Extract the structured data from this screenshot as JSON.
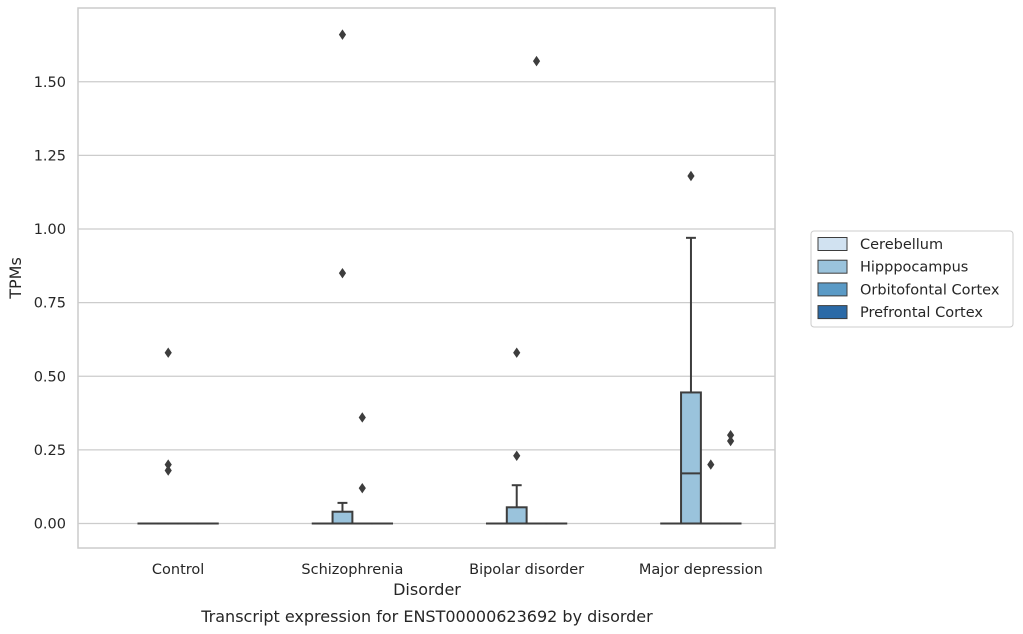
{
  "chart_data": {
    "type": "box",
    "caption": "Transcript expression for ENST00000623692 by disorder",
    "xlabel": "Disorder",
    "ylabel": "TPMs",
    "ylim": [
      -0.08,
      1.75
    ],
    "yticks": [
      0.0,
      0.25,
      0.5,
      0.75,
      1.0,
      1.25,
      1.5
    ],
    "ytick_labels": [
      "0.00",
      "0.25",
      "0.50",
      "0.75",
      "1.00",
      "1.25",
      "1.50"
    ],
    "grid": true,
    "legend_position": "right",
    "categories": [
      "Control",
      "Schizophrenia",
      "Bipolar disorder",
      "Major depression"
    ],
    "series": [
      {
        "name": "Cerebellum",
        "color": "#d1e2f1",
        "boxes": [
          {
            "q1": 0,
            "median": 0,
            "q3": 0,
            "whisker_low": 0,
            "whisker_high": 0,
            "outliers": []
          },
          {
            "q1": 0,
            "median": 0,
            "q3": 0,
            "whisker_low": 0,
            "whisker_high": 0,
            "outliers": []
          },
          {
            "q1": 0,
            "median": 0,
            "q3": 0,
            "whisker_low": 0,
            "whisker_high": 0,
            "outliers": []
          },
          {
            "q1": 0,
            "median": 0,
            "q3": 0,
            "whisker_low": 0,
            "whisker_high": 0,
            "outliers": []
          }
        ]
      },
      {
        "name": "Hipppocampus",
        "color": "#9ac3dc",
        "boxes": [
          {
            "q1": 0,
            "median": 0,
            "q3": 0,
            "whisker_low": 0,
            "whisker_high": 0,
            "outliers": [
              0.58,
              0.2,
              0.18
            ]
          },
          {
            "q1": 0,
            "median": 0,
            "q3": 0.04,
            "whisker_low": 0,
            "whisker_high": 0.07,
            "outliers": [
              1.66,
              0.85
            ]
          },
          {
            "q1": 0,
            "median": 0,
            "q3": 0.055,
            "whisker_low": 0,
            "whisker_high": 0.13,
            "outliers": [
              0.58,
              0.23
            ]
          },
          {
            "q1": 0,
            "median": 0.17,
            "q3": 0.445,
            "whisker_low": 0,
            "whisker_high": 0.97,
            "outliers": [
              1.18
            ]
          }
        ]
      },
      {
        "name": "Orbitofontal Cortex",
        "color": "#5a9ac6",
        "boxes": [
          {
            "q1": 0,
            "median": 0,
            "q3": 0,
            "whisker_low": 0,
            "whisker_high": 0,
            "outliers": []
          },
          {
            "q1": 0,
            "median": 0,
            "q3": 0,
            "whisker_low": 0,
            "whisker_high": 0,
            "outliers": [
              0.36,
              0.12
            ]
          },
          {
            "q1": 0,
            "median": 0,
            "q3": 0,
            "whisker_low": 0,
            "whisker_high": 0,
            "outliers": [
              1.57
            ]
          },
          {
            "q1": 0,
            "median": 0,
            "q3": 0,
            "whisker_low": 0,
            "whisker_high": 0,
            "outliers": [
              0.2
            ]
          }
        ]
      },
      {
        "name": "Prefrontal Cortex",
        "color": "#2b6aa7",
        "boxes": [
          {
            "q1": 0,
            "median": 0,
            "q3": 0,
            "whisker_low": 0,
            "whisker_high": 0,
            "outliers": []
          },
          {
            "q1": 0,
            "median": 0,
            "q3": 0,
            "whisker_low": 0,
            "whisker_high": 0,
            "outliers": []
          },
          {
            "q1": 0,
            "median": 0,
            "q3": 0,
            "whisker_low": 0,
            "whisker_high": 0,
            "outliers": []
          },
          {
            "q1": 0,
            "median": 0,
            "q3": 0,
            "whisker_low": 0,
            "whisker_high": 0,
            "outliers": [
              0.3,
              0.28
            ]
          }
        ]
      }
    ]
  }
}
